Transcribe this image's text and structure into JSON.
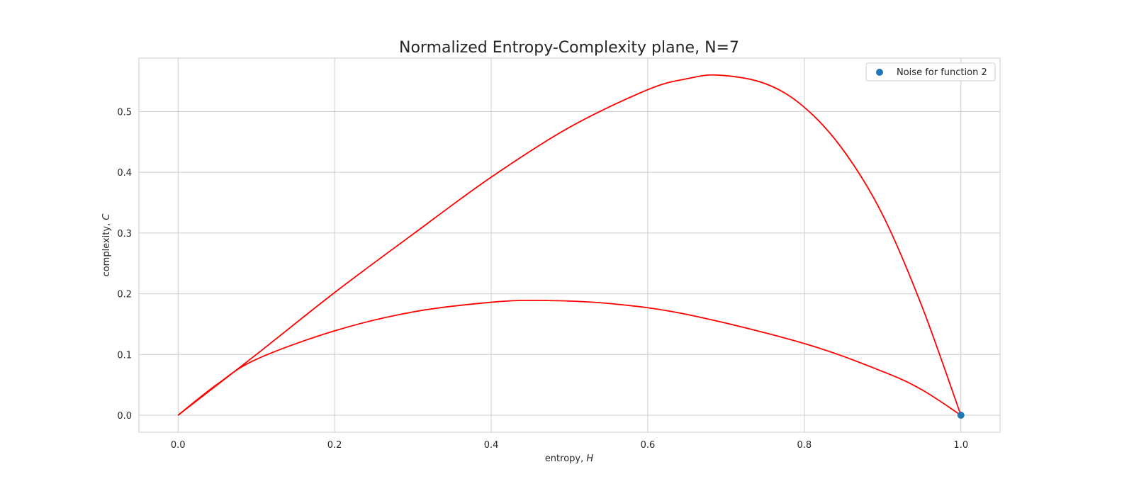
{
  "chart_data": {
    "type": "line",
    "title": "Normalized Entropy-Complexity plane, N=7",
    "xlabel": "entropy,",
    "xlabel_var": "H",
    "ylabel": "complexity,",
    "ylabel_var": "C",
    "xlim": [
      -0.05,
      1.05
    ],
    "ylim": [
      -0.028,
      0.588
    ],
    "xticks": [
      0.0,
      0.2,
      0.4,
      0.6,
      0.8,
      1.0
    ],
    "xtick_labels": [
      "0.0",
      "0.2",
      "0.4",
      "0.6",
      "0.8",
      "1.0"
    ],
    "yticks": [
      0.0,
      0.1,
      0.2,
      0.3,
      0.4,
      0.5
    ],
    "ytick_labels": [
      "0.0",
      "0.1",
      "0.2",
      "0.3",
      "0.4",
      "0.5"
    ],
    "grid": true,
    "legend_position": "top-right",
    "colors": {
      "bound_line": "#ff0000",
      "point": "#1f77b4",
      "grid": "#cccccc",
      "spine": "#cccccc"
    },
    "series": [
      {
        "role": "upper-bound",
        "x": [
          0.0,
          0.1,
          0.2,
          0.3,
          0.4,
          0.5,
          0.6,
          0.65,
          0.69,
          0.75,
          0.8,
          0.85,
          0.9,
          0.95,
          1.0
        ],
        "y": [
          0.0,
          0.1,
          0.202,
          0.298,
          0.392,
          0.474,
          0.536,
          0.554,
          0.56,
          0.546,
          0.507,
          0.436,
          0.33,
          0.18,
          0.0
        ]
      },
      {
        "role": "lower-bound",
        "x": [
          0.0,
          0.05,
          0.1,
          0.2,
          0.3,
          0.4,
          0.465,
          0.55,
          0.65,
          0.8,
          0.9,
          0.95,
          1.0
        ],
        "y": [
          0.0,
          0.051,
          0.092,
          0.139,
          0.17,
          0.186,
          0.189,
          0.184,
          0.166,
          0.118,
          0.072,
          0.042,
          0.0
        ]
      },
      {
        "role": "scatter",
        "name": "Noise for function 2",
        "x": [
          1.0
        ],
        "y": [
          0.0
        ]
      }
    ]
  }
}
